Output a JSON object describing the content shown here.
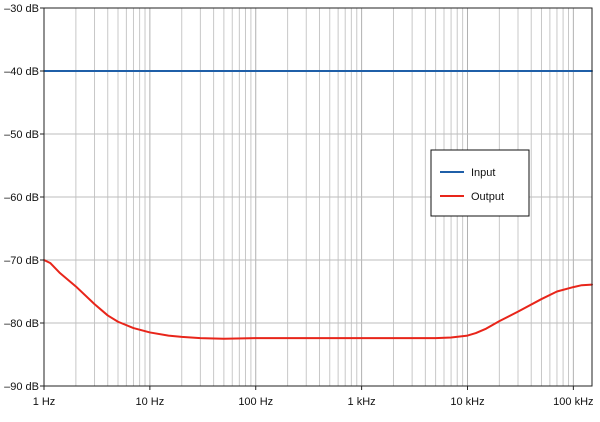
{
  "chart_data": {
    "type": "line",
    "title": "",
    "xlabel": "",
    "ylabel": "",
    "x_scale": "log",
    "xlim": [
      1,
      150000
    ],
    "ylim": [
      -90,
      -30
    ],
    "grid": true,
    "legend_position": "right",
    "x_tick_values": [
      1,
      10,
      100,
      1000,
      10000,
      100000
    ],
    "x_tick_labels": [
      "1 Hz",
      "10 Hz",
      "100 Hz",
      "1 kHz",
      "10 kHz",
      "100 kHz"
    ],
    "y_tick_values": [
      -30,
      -40,
      -50,
      -60,
      -70,
      -80,
      -90
    ],
    "y_tick_labels": [
      "–30 dB",
      "–40 dB",
      "–50 dB",
      "–60 dB",
      "–70 dB",
      "–80 dB",
      "–90 dB"
    ],
    "series": [
      {
        "name": "Input",
        "color": "#1f5fa8",
        "x": [
          1,
          150000
        ],
        "y": [
          -40,
          -40
        ]
      },
      {
        "name": "Output",
        "color": "#e8251a",
        "x": [
          1,
          1.15,
          1.4,
          2,
          3,
          4,
          5,
          7,
          10,
          15,
          20,
          30,
          50,
          100,
          200,
          500,
          1000,
          2000,
          5000,
          7000,
          10000,
          12000,
          15000,
          20000,
          30000,
          50000,
          70000,
          100000,
          120000,
          150000
        ],
        "y": [
          -70,
          -70.5,
          -72,
          -74.2,
          -77,
          -78.8,
          -79.8,
          -80.8,
          -81.5,
          -82.0,
          -82.2,
          -82.4,
          -82.5,
          -82.4,
          -82.4,
          -82.4,
          -82.4,
          -82.4,
          -82.4,
          -82.3,
          -82.0,
          -81.6,
          -80.9,
          -79.7,
          -78.2,
          -76.2,
          -75.0,
          -74.3,
          -74.0,
          -73.9
        ]
      }
    ]
  }
}
